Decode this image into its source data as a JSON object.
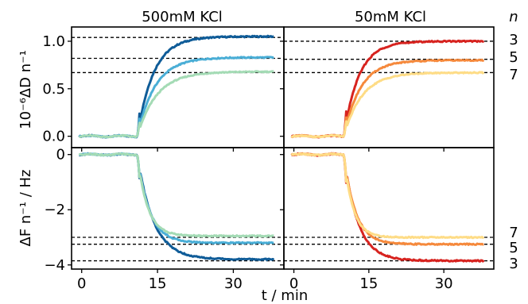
{
  "panel_titles": [
    "500mM KCl",
    "50mM KCl"
  ],
  "n_header": "n",
  "n_labels_top": [
    "3",
    "5",
    "7"
  ],
  "n_labels_bottom": [
    "7",
    "5",
    "3"
  ],
  "ylabel_top": "10⁻⁶ΔD n⁻¹",
  "ylabel_bottom": "ΔF n⁻¹ / Hz",
  "xlabel": "t / min",
  "colors": {
    "kcl500": {
      "n3": "#0f5c98",
      "n5": "#4aaed6",
      "n7": "#a4dbb5"
    },
    "kcl50": {
      "n3": "#d7231f",
      "n5": "#f5893c",
      "n7": "#fedc86"
    },
    "dashed": "#000000"
  },
  "chart_data": [
    {
      "type": "line",
      "title": "500mM KCl",
      "panel": "top-left",
      "xlim": [
        -2,
        40
      ],
      "ylim": [
        -0.12,
        1.15
      ],
      "xticks": [
        0,
        15,
        30
      ],
      "yticks": [
        0.0,
        0.5,
        1.0
      ],
      "ytick_labels": [
        "0.0",
        "0.5",
        "1.0"
      ],
      "hlines": [
        1.04,
        0.82,
        0.67
      ],
      "series": [
        {
          "key": "n3",
          "plateau": 1.05,
          "step_time": 11,
          "tau": 3.2
        },
        {
          "key": "n5",
          "plateau": 0.83,
          "step_time": 11,
          "tau": 3.5
        },
        {
          "key": "n7",
          "plateau": 0.68,
          "step_time": 11,
          "tau": 3.8
        }
      ]
    },
    {
      "type": "line",
      "title": "50mM KCl",
      "panel": "top-right",
      "xlim": [
        -2,
        40
      ],
      "ylim": [
        -0.12,
        1.15
      ],
      "xticks": [
        0,
        15,
        30
      ],
      "yticks": [
        0.0,
        0.5,
        1.0
      ],
      "hlines": [
        1.0,
        0.81,
        0.67
      ],
      "series": [
        {
          "key": "n3",
          "plateau": 1.0,
          "step_time": 10,
          "tau": 3.0
        },
        {
          "key": "n5",
          "plateau": 0.8,
          "step_time": 10,
          "tau": 3.3
        },
        {
          "key": "n7",
          "plateau": 0.67,
          "step_time": 10,
          "tau": 3.6
        }
      ]
    },
    {
      "type": "line",
      "title": "500mM KCl",
      "panel": "bottom-left",
      "xlim": [
        -2,
        40
      ],
      "ylim": [
        -4.15,
        0.25
      ],
      "xticks": [
        0,
        15,
        30
      ],
      "yticks": [
        0,
        -2,
        -4
      ],
      "ytick_labels": [
        "0",
        "−2",
        "−4"
      ],
      "xtick_labels": [
        "0",
        "15",
        "30"
      ],
      "hlines": [
        -3.0,
        -3.25,
        -3.85
      ],
      "series": [
        {
          "key": "n3",
          "plateau": -3.8,
          "step_time": 11,
          "tau": 3.2
        },
        {
          "key": "n5",
          "plateau": -3.2,
          "step_time": 11,
          "tau": 2.4
        },
        {
          "key": "n7",
          "plateau": -2.95,
          "step_time": 11,
          "tau": 2.0
        }
      ]
    },
    {
      "type": "line",
      "title": "50mM KCl",
      "panel": "bottom-right",
      "xlim": [
        -2,
        40
      ],
      "ylim": [
        -4.15,
        0.25
      ],
      "xticks": [
        0,
        15,
        30
      ],
      "yticks": [
        0,
        -2,
        -4
      ],
      "xtick_labels": [
        "0",
        "15",
        "30"
      ],
      "hlines": [
        -3.0,
        -3.25,
        -3.85
      ],
      "series": [
        {
          "key": "n3",
          "plateau": -3.85,
          "step_time": 10,
          "tau": 2.8
        },
        {
          "key": "n5",
          "plateau": -3.25,
          "step_time": 10,
          "tau": 2.3
        },
        {
          "key": "n7",
          "plateau": -3.0,
          "step_time": 10,
          "tau": 1.8
        }
      ]
    }
  ]
}
